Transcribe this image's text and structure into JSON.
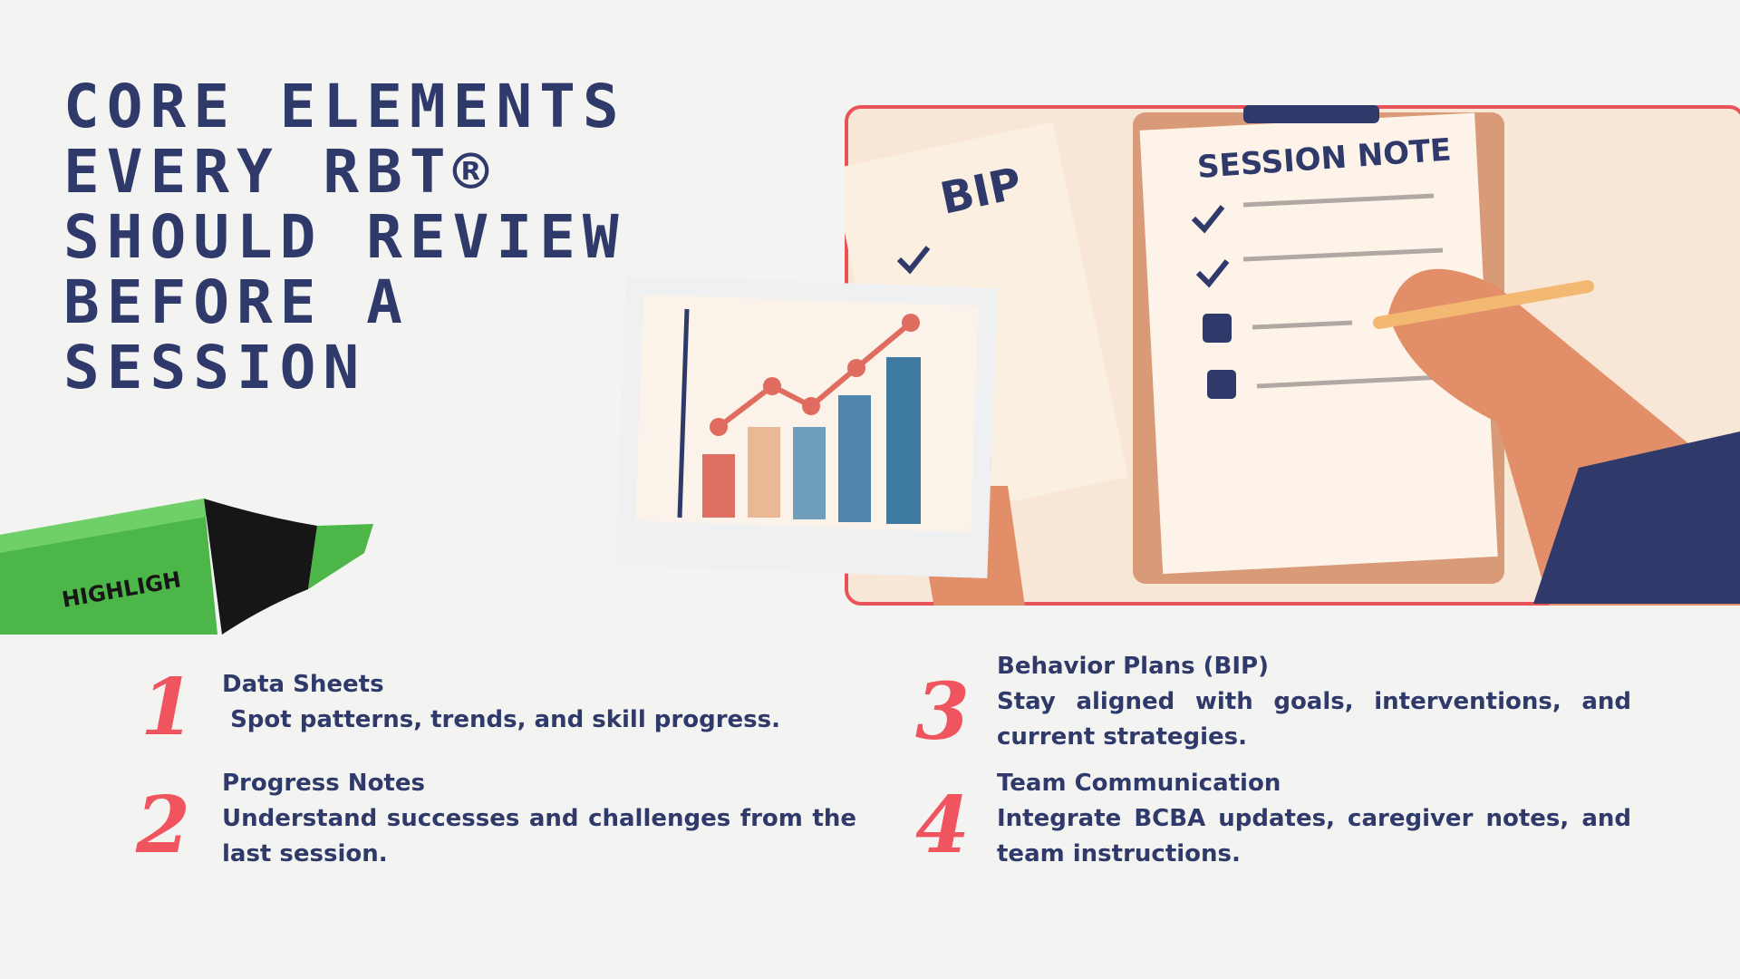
{
  "title": {
    "lines": [
      "CORE ELEMENTS",
      "EVERY RBT®",
      "SHOULD REVIEW",
      "BEFORE A",
      "SESSION"
    ]
  },
  "illustration": {
    "bip_label": "BIP",
    "note_label": "SESSION NOTE",
    "marker_label": "HIGHLIGH"
  },
  "items": [
    {
      "number": "1",
      "heading": "Data Sheets",
      "text": " Spot patterns, trends, and skill progress."
    },
    {
      "number": "2",
      "heading": "Progress Notes",
      "text": "Understand successes and challenges from the last session."
    },
    {
      "number": "3",
      "heading": "Behavior Plans (BIP)",
      "text": "Stay aligned with goals, interventions, and current strategies."
    },
    {
      "number": "4",
      "heading": "Team Communication",
      "text": "Integrate BCBA updates, caregiver notes, and team instructions."
    }
  ]
}
